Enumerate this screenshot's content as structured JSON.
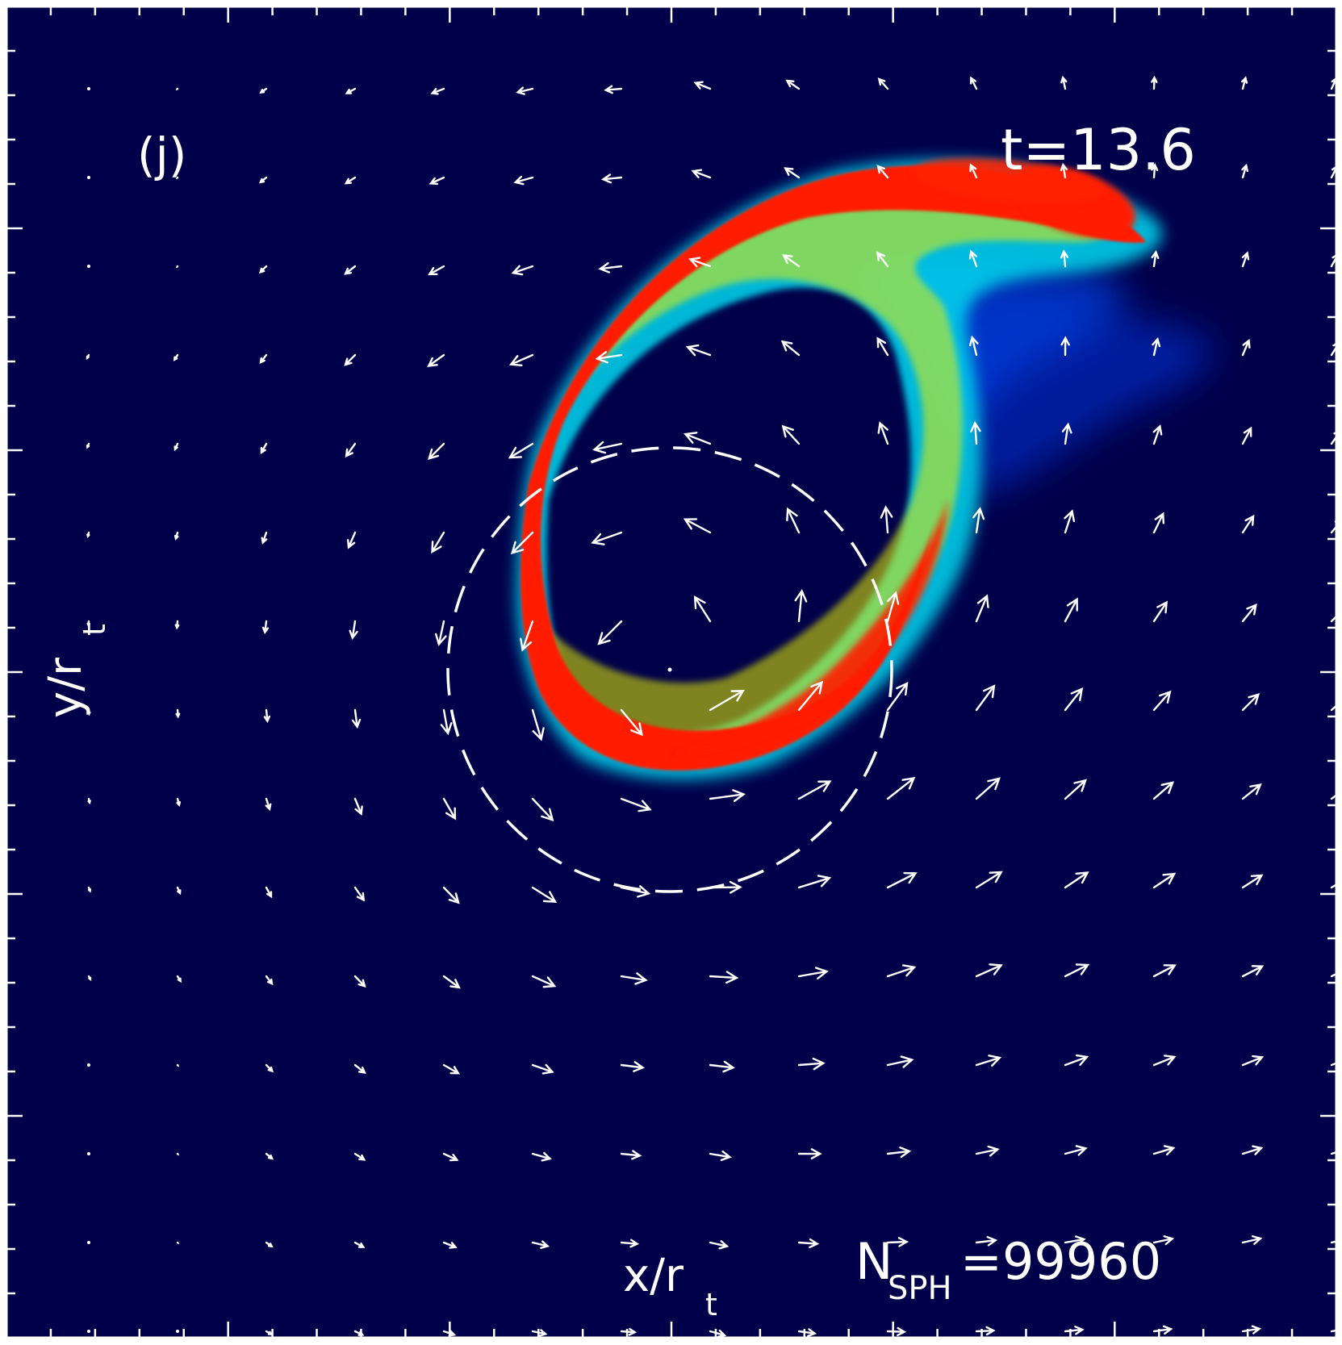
{
  "panel": {
    "label": "(j)",
    "time_label": "t=13.6",
    "particles_label_main": "N",
    "particles_label_sub": "SPH",
    "particles_label_value": "=99960"
  },
  "axes": {
    "xlabel_main": "x/r",
    "xlabel_sub": "t",
    "ylabel_main": "y/r",
    "ylabel_sub": "t"
  },
  "colors": {
    "background": "#00004a",
    "frame": "#ffffff",
    "stream_core": "#ff1a00",
    "stream_mid": "#ffe800",
    "stream_outer": "#00e8ff",
    "stream_halo": "#0030d0",
    "overlay": "#ffffff"
  },
  "overlays": {
    "dashed_circle": "tidal-radius circle",
    "velocity_field": "white velocity arrows"
  }
}
